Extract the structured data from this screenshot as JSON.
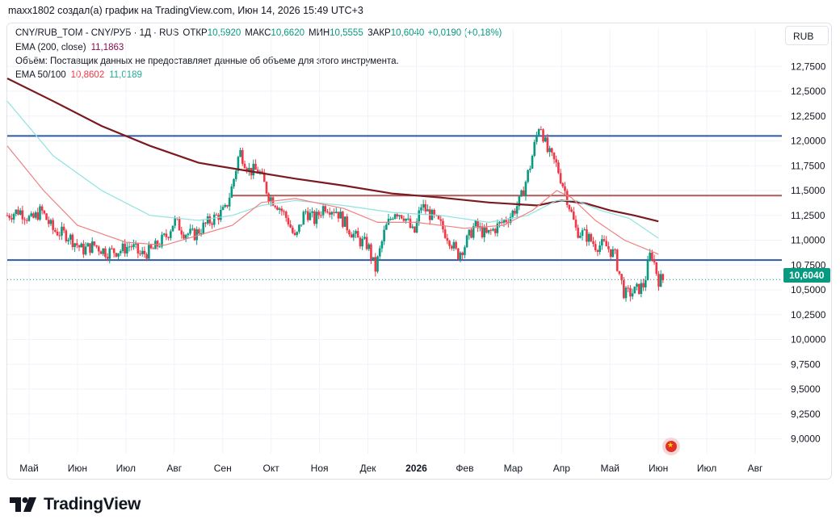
{
  "header": {
    "text": "maxx1802 создал(а) график на TradingView.com, Июн 14, 2026 15:49 UTC+3"
  },
  "legend": {
    "instrument": "CNY/RUB_TOM - CNY/РУБ · 1Д · RUS",
    "open_label": "ОТКР",
    "open": "10,5920",
    "high_label": "МАКС",
    "high": "10,6620",
    "low_label": "МИН",
    "low": "10,5555",
    "close_label": "ЗАКР",
    "close": "10,6040",
    "change": "+0,0190 (+0,18%)",
    "ema200_label": "EMA (200, close)",
    "ema200_value": "11,1863",
    "volume_note": "Объём: Поставщик данных не предоставляет данные об объеме для этого инструмента.",
    "ema50100_label": "EMA 50/100",
    "ema50_value": "10,8602",
    "ema100_value": "11,0189"
  },
  "currency_button": "RUB",
  "last_price_label": "10,6040",
  "brand": "TradingView",
  "colors": {
    "up": "#089981",
    "down": "#f23645",
    "ema200": "#7b1a1f",
    "ema50": "#f08080",
    "ema100": "#8fe3e0",
    "level_line": "#2e5aa8",
    "resistance_line": "#b05a5a",
    "grid": "#f0f3fa",
    "axis_text": "#131722"
  },
  "chart_data": {
    "type": "candlestick",
    "title": "CNY/RUB_TOM - CNY/РУБ · 1Д · RUS",
    "ylim": [
      8.85,
      12.85
    ],
    "y_ticks": [
      "12,7500",
      "12,5000",
      "12,2500",
      "12,0000",
      "11,7500",
      "11,5000",
      "11,2500",
      "11,0000",
      "10,7500",
      "10,5000",
      "10,2500",
      "10,0000",
      "9,7500",
      "9,5000",
      "9,2500",
      "9,0000"
    ],
    "x_tick_labels": [
      "Май",
      "Июн",
      "Июл",
      "Авг",
      "Сен",
      "Окт",
      "Ноя",
      "Дек",
      "2026",
      "Фев",
      "Мар",
      "Апр",
      "Май",
      "Июн",
      "Июл",
      "Авг"
    ],
    "x_months_index": [
      0,
      1,
      2,
      3,
      4,
      5,
      6,
      7,
      8,
      9,
      10,
      11,
      12,
      13,
      14,
      15
    ],
    "months_span": [
      -0.45,
      15.55
    ],
    "horizontal_levels": [
      {
        "value": 12.05,
        "color": "#2e5aa8"
      },
      {
        "value": 10.8,
        "color": "#2e5aa8"
      },
      {
        "value": 11.45,
        "color": "#b05a5a",
        "start_month": 4.2
      }
    ],
    "last_price": 10.604,
    "price_path": [
      [
        -0.45,
        11.25
      ],
      [
        -0.2,
        11.3
      ],
      [
        0.05,
        11.2
      ],
      [
        0.25,
        11.3
      ],
      [
        0.5,
        11.1
      ],
      [
        0.8,
        11.05
      ],
      [
        1.1,
        10.9
      ],
      [
        1.35,
        10.95
      ],
      [
        1.6,
        10.88
      ],
      [
        1.9,
        10.9
      ],
      [
        2.1,
        10.95
      ],
      [
        2.3,
        10.85
      ],
      [
        2.55,
        10.9
      ],
      [
        2.85,
        11.05
      ],
      [
        3.0,
        11.2
      ],
      [
        3.2,
        11.08
      ],
      [
        3.4,
        11.05
      ],
      [
        3.7,
        11.18
      ],
      [
        3.9,
        11.25
      ],
      [
        4.05,
        11.3
      ],
      [
        4.2,
        11.55
      ],
      [
        4.35,
        11.9
      ],
      [
        4.55,
        11.7
      ],
      [
        4.75,
        11.7
      ],
      [
        4.95,
        11.45
      ],
      [
        5.15,
        11.35
      ],
      [
        5.35,
        11.2
      ],
      [
        5.5,
        11.0
      ],
      [
        5.7,
        11.3
      ],
      [
        5.9,
        11.2
      ],
      [
        6.1,
        11.35
      ],
      [
        6.35,
        11.3
      ],
      [
        6.55,
        11.15
      ],
      [
        6.8,
        11.0
      ],
      [
        7.0,
        10.95
      ],
      [
        7.15,
        10.7
      ],
      [
        7.35,
        11.1
      ],
      [
        7.55,
        11.3
      ],
      [
        7.75,
        11.25
      ],
      [
        7.95,
        11.05
      ],
      [
        8.1,
        11.35
      ],
      [
        8.3,
        11.25
      ],
      [
        8.5,
        11.15
      ],
      [
        8.7,
        11.0
      ],
      [
        8.85,
        10.85
      ],
      [
        9.0,
        10.95
      ],
      [
        9.2,
        11.15
      ],
      [
        9.45,
        11.05
      ],
      [
        9.7,
        11.15
      ],
      [
        9.95,
        11.25
      ],
      [
        10.15,
        11.4
      ],
      [
        10.35,
        11.75
      ],
      [
        10.55,
        12.2
      ],
      [
        10.7,
        11.9
      ],
      [
        10.9,
        11.75
      ],
      [
        11.1,
        11.45
      ],
      [
        11.3,
        11.1
      ],
      [
        11.5,
        11.05
      ],
      [
        11.7,
        10.95
      ],
      [
        11.9,
        10.95
      ],
      [
        12.1,
        10.85
      ],
      [
        12.3,
        10.45
      ],
      [
        12.5,
        10.48
      ],
      [
        12.7,
        10.55
      ],
      [
        12.85,
        10.9
      ],
      [
        13.0,
        10.6
      ],
      [
        13.1,
        10.604
      ]
    ],
    "series": [
      {
        "name": "EMA (200, close)",
        "color": "#7b1a1f",
        "points": [
          [
            -0.45,
            12.63
          ],
          [
            0.5,
            12.4
          ],
          [
            1.5,
            12.15
          ],
          [
            2.5,
            11.95
          ],
          [
            3.5,
            11.78
          ],
          [
            4.5,
            11.7
          ],
          [
            5.5,
            11.62
          ],
          [
            6.5,
            11.55
          ],
          [
            7.5,
            11.47
          ],
          [
            8.5,
            11.43
          ],
          [
            9.5,
            11.38
          ],
          [
            10.5,
            11.35
          ],
          [
            11.0,
            11.4
          ],
          [
            11.5,
            11.37
          ],
          [
            12.0,
            11.3
          ],
          [
            12.5,
            11.25
          ],
          [
            13.0,
            11.19
          ]
        ]
      },
      {
        "name": "EMA 100",
        "color": "#8fe3e0",
        "points": [
          [
            -0.45,
            12.4
          ],
          [
            0.5,
            11.85
          ],
          [
            1.5,
            11.5
          ],
          [
            2.5,
            11.25
          ],
          [
            3.5,
            11.2
          ],
          [
            4.2,
            11.25
          ],
          [
            4.8,
            11.35
          ],
          [
            5.5,
            11.4
          ],
          [
            6.5,
            11.35
          ],
          [
            7.5,
            11.28
          ],
          [
            8.5,
            11.25
          ],
          [
            9.5,
            11.18
          ],
          [
            10.3,
            11.25
          ],
          [
            10.9,
            11.4
          ],
          [
            11.3,
            11.4
          ],
          [
            11.8,
            11.3
          ],
          [
            12.4,
            11.22
          ],
          [
            13.0,
            11.02
          ]
        ]
      },
      {
        "name": "EMA 50",
        "color": "#f08080",
        "points": [
          [
            -0.45,
            11.95
          ],
          [
            0.3,
            11.5
          ],
          [
            1.0,
            11.15
          ],
          [
            2.0,
            10.98
          ],
          [
            2.8,
            10.95
          ],
          [
            3.5,
            11.05
          ],
          [
            4.2,
            11.15
          ],
          [
            4.8,
            11.38
          ],
          [
            5.5,
            11.42
          ],
          [
            6.5,
            11.32
          ],
          [
            7.2,
            11.18
          ],
          [
            8.0,
            11.18
          ],
          [
            9.0,
            11.12
          ],
          [
            9.8,
            11.15
          ],
          [
            10.4,
            11.3
          ],
          [
            10.9,
            11.5
          ],
          [
            11.2,
            11.43
          ],
          [
            11.7,
            11.2
          ],
          [
            12.3,
            11.0
          ],
          [
            13.0,
            10.86
          ]
        ]
      }
    ]
  }
}
